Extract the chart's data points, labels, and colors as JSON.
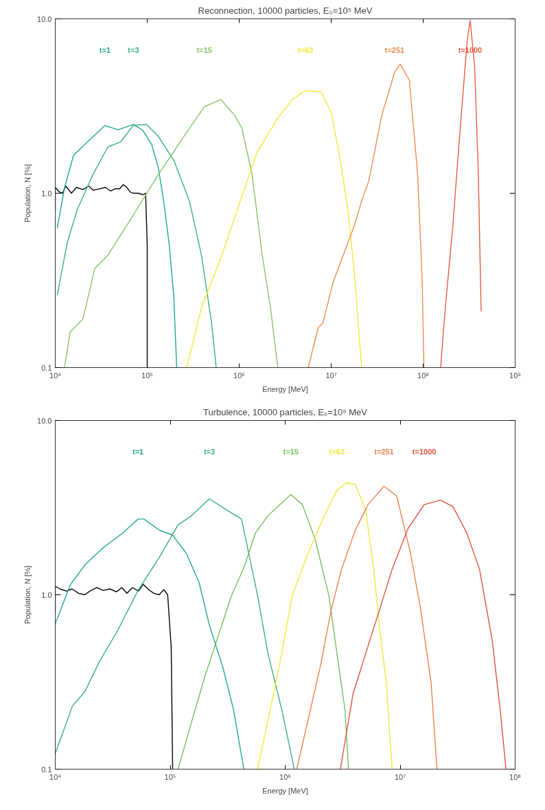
{
  "chart_data": [
    {
      "type": "line",
      "title": "Reconnection, 10000 particles, E₀=10⁵ MeV",
      "xlabel": "Energy [MeV]",
      "ylabel": "Population, N [%]",
      "log": "xy",
      "grid": false,
      "legend": false,
      "marker": "none",
      "line_style": "solid",
      "xlim": [
        10000.0,
        1000000000.0
      ],
      "ylim": [
        0.1,
        10
      ],
      "xticks": [
        {
          "value": 10000.0,
          "label": "10⁴"
        },
        {
          "value": 100000.0,
          "label": "10⁵"
        },
        {
          "value": 1000000.0,
          "label": "10⁶"
        },
        {
          "value": 10000000.0,
          "label": "10⁷"
        },
        {
          "value": 100000000.0,
          "label": "10⁸"
        },
        {
          "value": 1000000000.0,
          "label": "10⁹"
        }
      ],
      "yticks": [
        {
          "value": 0.1,
          "label": "0.1"
        },
        {
          "value": 1,
          "label": "1.0"
        },
        {
          "value": 10,
          "label": "10.0"
        }
      ],
      "series": [
        {
          "color": "#000000",
          "x": [
            10000.0,
            10000.0,
            11000.0,
            12000.0,
            13000.0,
            15000.0,
            17000.0,
            20000.0,
            23000.0,
            26000.0,
            30000.0,
            35000.0,
            40000.0,
            45000.0,
            50000.0,
            55000.0,
            60000.0,
            65000.0,
            70000.0,
            80000.0,
            90000.0,
            96000.0,
            100000.0,
            100000.0
          ],
          "values": [
            0.8,
            1.08,
            1.02,
            1.0,
            1.1,
            1.0,
            1.08,
            1.05,
            1.1,
            1.04,
            1.06,
            1.08,
            1.03,
            1.06,
            1.06,
            1.12,
            1.08,
            1.02,
            1.0,
            1.0,
            0.98,
            1.0,
            0.5,
            0.1
          ]
        },
        {
          "name": "t=1",
          "color": "#20a890",
          "x": [
            10500.0,
            12600.0,
            15800.0,
            22400.0,
            34700.0,
            47900.0,
            70800.0,
            89100.0,
            112000.0,
            132000.0,
            151000.0,
            174000.0,
            195000.0,
            209000.0
          ],
          "values": [
            0.63,
            1.07,
            1.65,
            1.97,
            2.45,
            2.31,
            2.48,
            2.3,
            1.9,
            1.4,
            0.9,
            0.5,
            0.25,
            0.1
          ]
        },
        {
          "name": "t=3",
          "color": "#38b07c",
          "x": [
            10500.0,
            13500.0,
            17400.0,
            25700.0,
            37200.0,
            51300.0,
            70800.0,
            97700.0,
            132000.0,
            195000.0,
            288000.0,
            389000.0,
            501000.0,
            562000.0
          ],
          "values": [
            0.26,
            0.52,
            0.81,
            1.28,
            1.84,
            1.97,
            2.45,
            2.48,
            2.12,
            1.54,
            0.9,
            0.44,
            0.18,
            0.1
          ]
        },
        {
          "name": "t=15",
          "color": "#88c464",
          "x": [
            12600.0,
            14500.0,
            20000.0,
            26900.0,
            37200.0,
            70800.0,
            132000.0,
            251000.0,
            417000.0,
            631000.0,
            891000.0,
            1070000.0,
            1380000.0,
            1780000.0,
            2190000.0,
            2630000.0
          ],
          "values": [
            0.1,
            0.16,
            0.19,
            0.37,
            0.44,
            0.75,
            1.28,
            2.12,
            3.13,
            3.45,
            2.8,
            2.36,
            1.28,
            0.44,
            0.22,
            0.1
          ]
        },
        {
          "name": "t=63",
          "color": "#f0e838",
          "x": [
            269000.0,
            389000.0,
            646000.0,
            1070000.0,
            1550000.0,
            2630000.0,
            3800000.0,
            5250000.0,
            7760000.0,
            10000000.0,
            12600000.0,
            15500000.0,
            18200000.0,
            21400000.0
          ],
          "values": [
            0.1,
            0.22,
            0.44,
            0.96,
            1.7,
            2.7,
            3.46,
            3.88,
            3.81,
            2.92,
            1.53,
            0.75,
            0.31,
            0.1
          ]
        },
        {
          "name": "t=251",
          "color": "#f08a50",
          "x": [
            5620000.0,
            7240000.0,
            8130000.0,
            10500000.0,
            13500000.0,
            17800000.0,
            21400000.0,
            25700000.0,
            35500000.0,
            49000000.0,
            56200000.0,
            70800000.0,
            87100000.0,
            97700000.0,
            102000000.0
          ],
          "values": [
            0.1,
            0.17,
            0.18,
            0.31,
            0.44,
            0.65,
            0.9,
            1.18,
            2.8,
            4.95,
            5.5,
            4.45,
            1.28,
            0.31,
            0.1
          ]
        },
        {
          "name": "t=1000",
          "color": "#e85a40",
          "x": [
            155000000.0,
            174000000.0,
            209000000.0,
            257000000.0,
            302000000.0,
            324000000.0,
            363000000.0,
            398000000.0,
            427000000.0
          ],
          "values": [
            0.1,
            0.22,
            0.63,
            2.63,
            7.6,
            9.8,
            5.35,
            1.28,
            0.21
          ]
        }
      ]
    },
    {
      "type": "line",
      "title": "Turbulence, 10000 particles, E₀=10⁵ MeV",
      "xlabel": "Energy [MeV]",
      "ylabel": "Population, N [%]",
      "log": "xy",
      "grid": false,
      "legend": false,
      "marker": "none",
      "line_style": "solid",
      "xlim": [
        10000.0,
        100000000.0
      ],
      "ylim": [
        0.1,
        10
      ],
      "xticks": [
        {
          "value": 10000.0,
          "label": "10⁴"
        },
        {
          "value": 100000.0,
          "label": "10⁵"
        },
        {
          "value": 1000000.0,
          "label": "10⁶"
        },
        {
          "value": 10000000.0,
          "label": "10⁷"
        },
        {
          "value": 100000000.0,
          "label": "10⁸"
        }
      ],
      "yticks": [
        {
          "value": 0.1,
          "label": "0.1"
        },
        {
          "value": 1,
          "label": "1.0"
        },
        {
          "value": 10,
          "label": "10.0"
        }
      ],
      "series": [
        {
          "color": "#000000",
          "x": [
            10000.0,
            10000.0,
            11000.0,
            12500.0,
            14000.0,
            16000.0,
            18000.0,
            20000.0,
            23000.0,
            26000.0,
            30000.0,
            34000.0,
            38000.0,
            42000.0,
            47000.0,
            53000.0,
            58000.0,
            65000.0,
            72000.0,
            80000.0,
            88000.0,
            95000.0,
            102000.0,
            105000.0
          ],
          "values": [
            0.8,
            1.12,
            1.08,
            1.05,
            1.08,
            1.02,
            1.0,
            1.05,
            1.1,
            1.06,
            1.08,
            1.04,
            1.1,
            1.02,
            1.1,
            1.05,
            1.15,
            1.07,
            1.02,
            1.0,
            1.07,
            1.0,
            0.5,
            0.1
          ]
        },
        {
          "name": "t=1",
          "color": "#20a890",
          "x": [
            10000.0,
            13500.0,
            18200.0,
            26300.0,
            38000.0,
            52500.0,
            58900.0,
            81300.0,
            105000.0,
            138000.0,
            178000.0,
            219000.0,
            288000.0,
            355000.0,
            437000.0
          ],
          "values": [
            0.68,
            1.14,
            1.49,
            1.87,
            2.24,
            2.72,
            2.72,
            2.34,
            2.2,
            1.73,
            1.18,
            0.67,
            0.38,
            0.22,
            0.1
          ]
        },
        {
          "name": "t=3",
          "color": "#38b07c",
          "x": [
            10000.0,
            14100.0,
            18200.0,
            24000.0,
            34700.0,
            52500.0,
            81300.0,
            117000.0,
            151000.0,
            219000.0,
            316000.0,
            417000.0,
            575000.0,
            708000.0,
            933000.0,
            1200000.0
          ],
          "values": [
            0.123,
            0.23,
            0.28,
            0.41,
            0.62,
            1.06,
            1.66,
            2.52,
            2.82,
            3.55,
            3.04,
            2.72,
            0.99,
            0.46,
            0.22,
            0.1
          ]
        },
        {
          "name": "t=15",
          "color": "#78bc60",
          "x": [
            117000.0,
            151000.0,
            200000.0,
            257000.0,
            339000.0,
            437000.0,
            550000.0,
            708000.0,
            1120000.0,
            1410000.0,
            1820000.0,
            2400000.0,
            2820000.0,
            3310000.0,
            3550000.0
          ],
          "values": [
            0.1,
            0.18,
            0.34,
            0.56,
            0.98,
            1.43,
            2.26,
            2.84,
            3.76,
            3.29,
            2.09,
            0.99,
            0.46,
            0.22,
            0.1
          ]
        },
        {
          "name": "t=63",
          "color": "#f0e838",
          "x": [
            575000.0,
            741000.0,
            933000.0,
            1150000.0,
            1580000.0,
            2190000.0,
            2820000.0,
            3390000.0,
            4070000.0,
            5010000.0,
            5890000.0,
            6610000.0,
            7590000.0,
            8510000.0
          ],
          "values": [
            0.1,
            0.22,
            0.46,
            0.99,
            1.73,
            2.84,
            3.98,
            4.37,
            4.3,
            3.05,
            1.4,
            0.65,
            0.31,
            0.1
          ]
        },
        {
          "name": "t=251",
          "color": "#f08050",
          "x": [
            1260000.0,
            1660000.0,
            2040000.0,
            2510000.0,
            3090000.0,
            4070000.0,
            5250000.0,
            7240000.0,
            9330000.0,
            12300000.0,
            15100000.0,
            18600000.0,
            20900000.0
          ],
          "values": [
            0.1,
            0.22,
            0.4,
            0.82,
            1.4,
            2.35,
            3.29,
            4.2,
            3.69,
            1.73,
            0.82,
            0.31,
            0.1
          ]
        },
        {
          "name": "t=1000",
          "color": "#e05040",
          "x": [
            3020000.0,
            3890000.0,
            5010000.0,
            6610000.0,
            8510000.0,
            11700000.0,
            16200000.0,
            22400000.0,
            28800000.0,
            38000000.0,
            49000000.0,
            63100000.0,
            74100000.0,
            83200000.0
          ],
          "values": [
            0.1,
            0.27,
            0.46,
            0.82,
            1.4,
            2.4,
            3.29,
            3.49,
            3.2,
            2.26,
            1.4,
            0.55,
            0.22,
            0.1
          ]
        }
      ]
    }
  ]
}
